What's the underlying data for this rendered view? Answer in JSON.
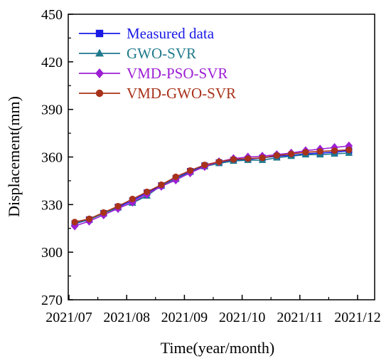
{
  "chart_data": {
    "type": "line",
    "xlabel": "Time(year/month)",
    "ylabel": "Displacement(mm)",
    "ylim": [
      270,
      450
    ],
    "yticks": [
      270,
      300,
      330,
      360,
      390,
      420,
      450
    ],
    "xticks": [
      "2021/07",
      "2021/08",
      "2021/09",
      "2021/10",
      "2021/11",
      "2021/12"
    ],
    "x": [
      0.1,
      0.35,
      0.6,
      0.85,
      1.1,
      1.35,
      1.6,
      1.85,
      2.1,
      2.35,
      2.6,
      2.85,
      3.1,
      3.35,
      3.6,
      3.85,
      4.1,
      4.35,
      4.6,
      4.85
    ],
    "legend_position": "top-left",
    "grid": false,
    "series": [
      {
        "name": "Measured data",
        "marker": "square",
        "color": "#1a1ae6",
        "values": [
          318,
          320.5,
          324.5,
          328.5,
          332.5,
          337.5,
          342,
          346.5,
          351,
          354.5,
          356.5,
          358,
          358.5,
          359.5,
          360.5,
          361,
          362,
          362.5,
          363,
          364
        ]
      },
      {
        "name": "GWO-SVR",
        "marker": "triangle",
        "color": "#1f7a8c",
        "values": [
          318.5,
          320.5,
          324.5,
          328,
          331,
          335.5,
          342,
          346,
          350.5,
          354,
          356,
          357.5,
          358,
          358,
          359.5,
          360.5,
          361.5,
          361.5,
          362,
          362.5
        ]
      },
      {
        "name": "VMD-PSO-SVR",
        "marker": "diamond",
        "color": "#9d1fd4",
        "values": [
          316.5,
          319.5,
          323.5,
          327.5,
          331.5,
          336.5,
          341.5,
          345.5,
          350,
          354,
          357,
          359,
          360,
          360.5,
          361.5,
          362.5,
          364,
          365,
          366,
          367
        ]
      },
      {
        "name": "VMD-GWO-SVR",
        "marker": "circle",
        "color": "#a8321a",
        "values": [
          319,
          321,
          325,
          329,
          333.5,
          338,
          342.5,
          347.5,
          351.5,
          355,
          357,
          358.5,
          359,
          359.5,
          361,
          362,
          363,
          363.5,
          364,
          364.5
        ]
      }
    ]
  }
}
